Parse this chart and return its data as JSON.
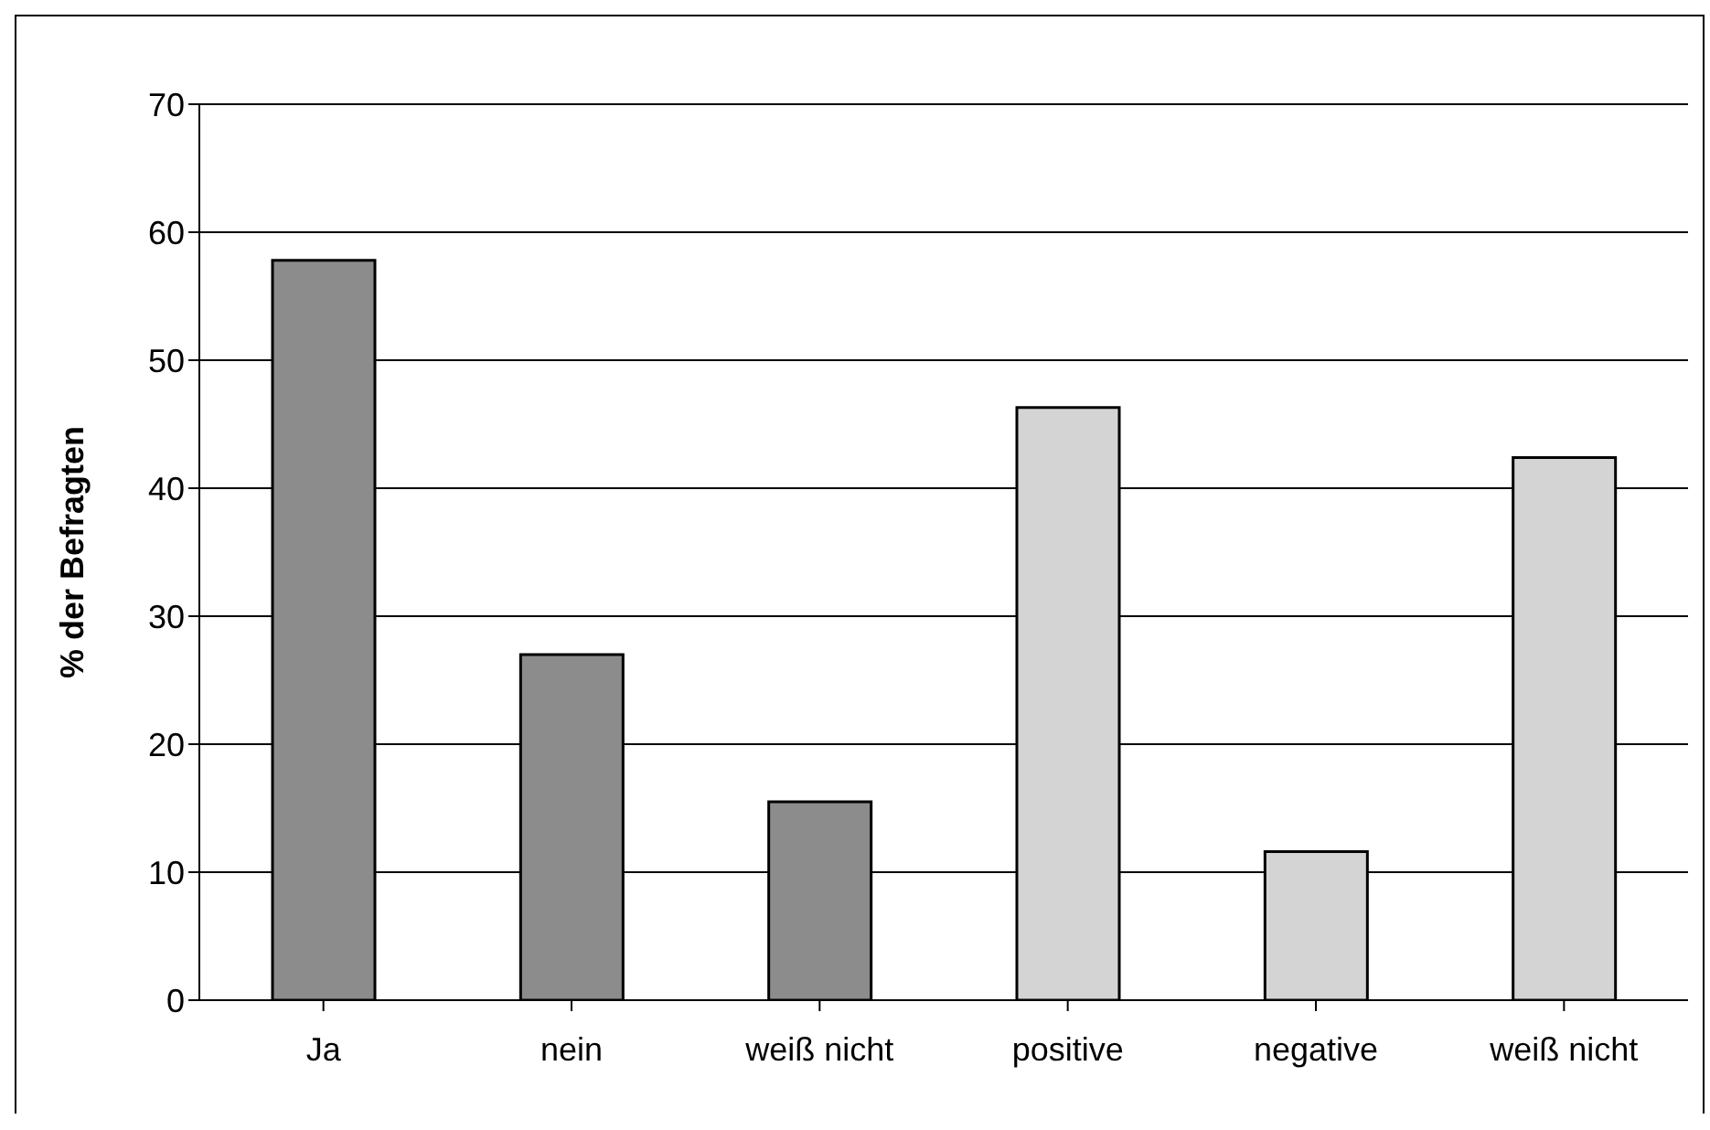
{
  "chart_data": {
    "type": "bar",
    "ylabel": "% der Befragten",
    "categories": [
      "Ja",
      "nein",
      "weiß nicht",
      "positive",
      "negative",
      "weiß nicht"
    ],
    "values": [
      57.8,
      27,
      15.5,
      46.3,
      11.6,
      42.4
    ],
    "colors": [
      "#8c8c8c",
      "#8c8c8c",
      "#8c8c8c",
      "#d4d4d4",
      "#d4d4d4",
      "#d4d4d4"
    ],
    "ylim": [
      0,
      70
    ],
    "yticks": [
      0,
      10,
      20,
      30,
      40,
      50,
      60,
      70
    ],
    "grid": "y"
  }
}
